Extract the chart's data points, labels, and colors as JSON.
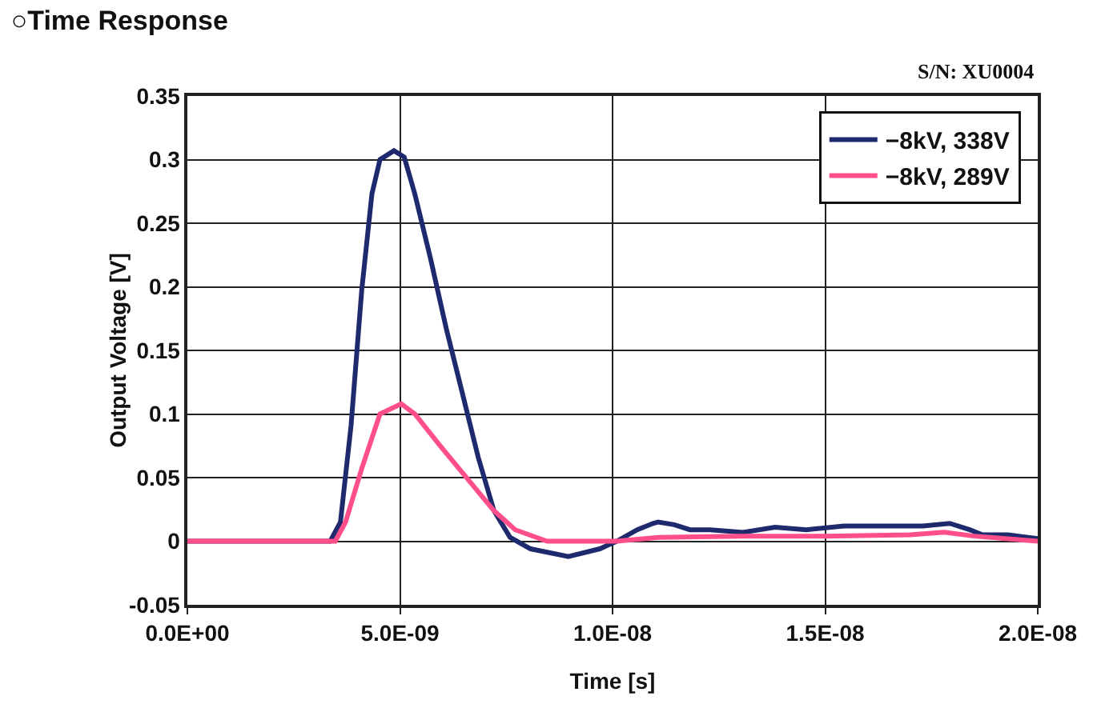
{
  "chart_data": {
    "type": "line",
    "title": "○Time Response",
    "subtitle": "S/N: XU0004",
    "xlabel": "Time [s]",
    "ylabel": "Output Voltage [V]",
    "xlim": [
      0,
      2e-08
    ],
    "xticks": [
      {
        "value": 0,
        "label": "0.0E+00"
      },
      {
        "value": 5e-09,
        "label": "5.0E-09"
      },
      {
        "value": 1e-08,
        "label": "1.0E-08"
      },
      {
        "value": 1.5e-08,
        "label": "1.5E-08"
      },
      {
        "value": 2e-08,
        "label": "2.0E-08"
      }
    ],
    "ylim": [
      -0.05,
      0.35
    ],
    "yticks": [
      -0.05,
      0,
      0.05,
      0.1,
      0.15,
      0.2,
      0.25,
      0.3,
      0.35
    ],
    "grid": true,
    "legend": "top right",
    "marker": "none",
    "line_style": "solid",
    "series": [
      {
        "name": "−8kV, 338V",
        "color": "#1f2a6e",
        "x": [
          0,
          3.36e-09,
          3.6e-09,
          3.85e-09,
          4.1e-09,
          4.34e-09,
          4.53e-09,
          4.86e-09,
          5.1e-09,
          5.35e-09,
          5.72e-09,
          6.09e-09,
          6.47e-09,
          6.84e-09,
          7.21e-09,
          7.59e-09,
          8.07e-09,
          8.96e-09,
          9.7e-09,
          1.01e-08,
          1.058e-08,
          1.095e-08,
          1.107e-08,
          1.145e-08,
          1.182e-08,
          1.23e-08,
          1.307e-08,
          1.382e-08,
          1.456e-08,
          1.544e-08,
          1.63e-08,
          1.73e-08,
          1.793e-08,
          1.84e-08,
          1.87e-08,
          1.93e-08,
          2e-08
        ],
        "values": [
          0,
          0,
          0.015,
          0.091,
          0.197,
          0.273,
          0.3,
          0.307,
          0.302,
          0.273,
          0.222,
          0.167,
          0.116,
          0.066,
          0.024,
          0.003,
          -0.006,
          -0.012,
          -0.006,
          0,
          0.009,
          0.014,
          0.015,
          0.013,
          0.009,
          0.009,
          0.007,
          0.011,
          0.009,
          0.012,
          0.012,
          0.012,
          0.014,
          0.009,
          0.005,
          0.005,
          0.002
        ]
      },
      {
        "name": "−8kV, 289V",
        "color": "#ff4f8b",
        "x": [
          0,
          3.48e-09,
          3.72e-09,
          4.1e-09,
          4.53e-09,
          5.03e-09,
          5.35e-09,
          5.97e-09,
          6.59e-09,
          7.21e-09,
          7.71e-09,
          8.46e-09,
          1.01e-08,
          1.107e-08,
          1.3e-08,
          1.5e-08,
          1.7e-08,
          1.78e-08,
          1.85e-08,
          2e-08
        ],
        "values": [
          0,
          0,
          0.015,
          0.057,
          0.1,
          0.108,
          0.1,
          0.074,
          0.049,
          0.024,
          0.009,
          0,
          0,
          0.003,
          0.004,
          0.004,
          0.005,
          0.007,
          0.004,
          0
        ]
      }
    ]
  }
}
